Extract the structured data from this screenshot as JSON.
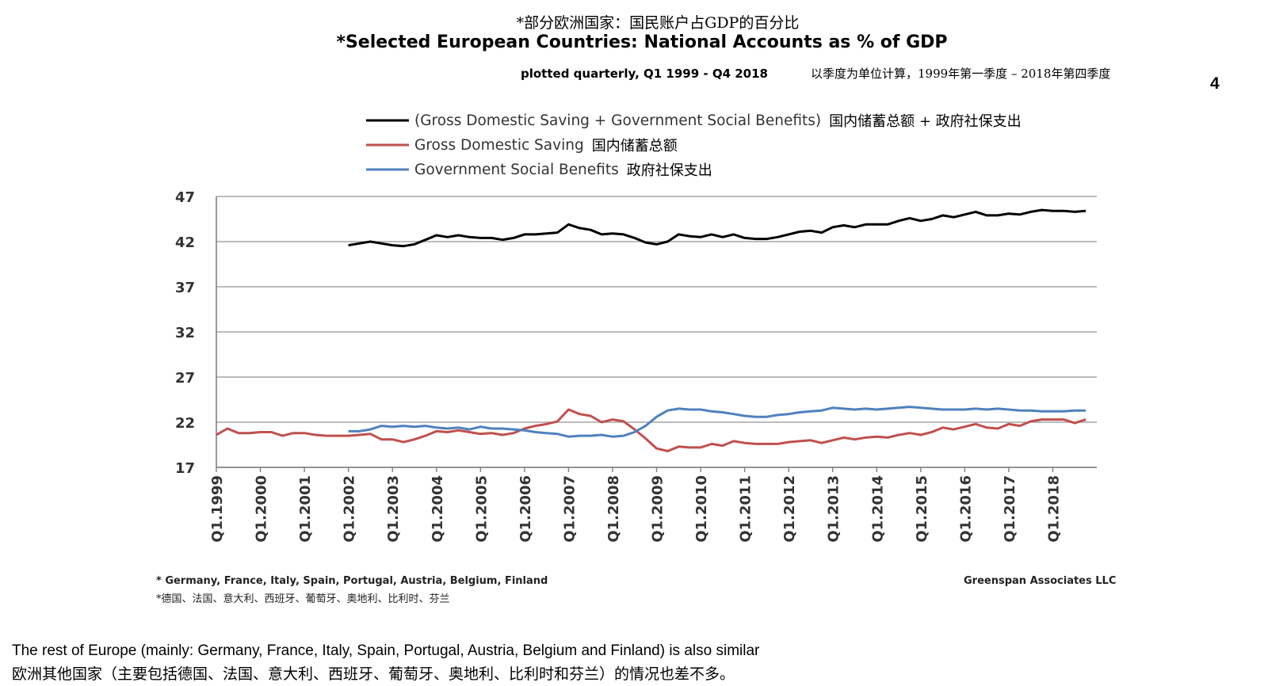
{
  "page": {
    "title_cn": "*部分欧洲国家：国民账户占GDP的百分比",
    "title_en": "*Selected European Countries: National Accounts as % of GDP",
    "subtitle_en": "plotted quarterly, Q1 1999 - Q4 2018",
    "subtitle_cn": "以季度为单位计算，1999年第一季度 – 2018年第四季度",
    "page_number": "4",
    "footnote_en": "* Germany, France, Italy, Spain, Portugal, Austria, Belgium, Finland",
    "footnote_cn": "*德国、法国、意大利、西班牙、葡萄牙、奥地利、比利时、芬兰",
    "source": "Greenspan Associates LLC",
    "caption_en": "The rest of Europe (mainly: Germany, France, Italy, Spain, Portugal, Austria, Belgium and Finland) is also similar",
    "caption_cn": "欧洲其他国家（主要包括德国、法国、意大利、西班牙、葡萄牙、奥地利、比利时和芬兰）的情况也差不多。"
  },
  "chart_data": {
    "type": "line",
    "title": "*Selected European Countries: National Accounts as % of GDP",
    "subtitle": "plotted quarterly, Q1 1999 - Q4 2018",
    "xlabel": "",
    "ylabel": "",
    "ylim": [
      17,
      47
    ],
    "yticks": [
      17,
      22,
      27,
      32,
      37,
      42,
      47
    ],
    "xticks": [
      "Q1.1999",
      "Q1.2000",
      "Q1.2001",
      "Q1.2002",
      "Q1.2003",
      "Q1.2004",
      "Q1.2005",
      "Q1.2006",
      "Q1.2007",
      "Q1.2008",
      "Q1.2009",
      "Q1.2010",
      "Q1.2011",
      "Q1.2012",
      "Q1.2013",
      "Q1.2014",
      "Q1.2015",
      "Q1.2016",
      "Q1.2017",
      "Q1.2018"
    ],
    "x_start_year": 1999,
    "quarters": 80,
    "grid": true,
    "legend_position": "top",
    "series": [
      {
        "name": "(Gross Domestic Saving + Government Social Benefits)",
        "name_cn": "国内储蓄总额 + 政府社保支出",
        "color": "#000000",
        "start_index": 12,
        "values": [
          41.6,
          41.8,
          42.0,
          41.8,
          41.6,
          41.5,
          41.7,
          42.2,
          42.7,
          42.5,
          42.7,
          42.5,
          42.4,
          42.4,
          42.2,
          42.4,
          42.8,
          42.8,
          42.9,
          43.0,
          43.9,
          43.5,
          43.3,
          42.8,
          42.9,
          42.8,
          42.4,
          41.9,
          41.7,
          42.0,
          42.8,
          42.6,
          42.5,
          42.8,
          42.5,
          42.8,
          42.4,
          42.3,
          42.3,
          42.5,
          42.8,
          43.1,
          43.2,
          43.0,
          43.6,
          43.8,
          43.6,
          43.9,
          43.9,
          43.9,
          44.3,
          44.6,
          44.3,
          44.5,
          44.9,
          44.7,
          45.0,
          45.3,
          44.9,
          44.9,
          45.1,
          45.0,
          45.3,
          45.5,
          45.4,
          45.4,
          45.3,
          45.4
        ]
      },
      {
        "name": "Gross Domestic Saving",
        "name_cn": "国内储蓄总额",
        "color": "#c0504d",
        "start_index": 0,
        "values": [
          20.6,
          21.3,
          20.8,
          20.8,
          20.9,
          20.9,
          20.5,
          20.8,
          20.8,
          20.6,
          20.5,
          20.5,
          20.5,
          20.6,
          20.7,
          20.1,
          20.1,
          19.8,
          20.1,
          20.5,
          21.0,
          20.9,
          21.1,
          20.9,
          20.7,
          20.8,
          20.6,
          20.8,
          21.3,
          21.6,
          21.8,
          22.1,
          23.4,
          22.9,
          22.7,
          22.0,
          22.3,
          22.1,
          21.2,
          20.2,
          19.1,
          18.8,
          19.3,
          19.2,
          19.2,
          19.6,
          19.4,
          19.9,
          19.7,
          19.6,
          19.6,
          19.6,
          19.8,
          19.9,
          20.0,
          19.7,
          20.0,
          20.3,
          20.1,
          20.3,
          20.4,
          20.3,
          20.6,
          20.8,
          20.6,
          20.9,
          21.4,
          21.2,
          21.5,
          21.8,
          21.4,
          21.3,
          21.8,
          21.6,
          22.1,
          22.3,
          22.3,
          22.3,
          21.9,
          22.3
        ]
      },
      {
        "name": "Government Social Benefits",
        "name_cn": "政府社保支出",
        "color": "#4f81bd",
        "start_index": 12,
        "values": [
          21.0,
          21.0,
          21.2,
          21.6,
          21.5,
          21.6,
          21.5,
          21.6,
          21.4,
          21.3,
          21.4,
          21.2,
          21.5,
          21.3,
          21.3,
          21.2,
          21.1,
          20.9,
          20.8,
          20.7,
          20.4,
          20.5,
          20.5,
          20.6,
          20.4,
          20.5,
          20.9,
          21.6,
          22.6,
          23.3,
          23.5,
          23.4,
          23.4,
          23.2,
          23.1,
          22.9,
          22.7,
          22.6,
          22.6,
          22.8,
          22.9,
          23.1,
          23.2,
          23.3,
          23.6,
          23.5,
          23.4,
          23.5,
          23.4,
          23.5,
          23.6,
          23.7,
          23.6,
          23.5,
          23.4,
          23.4,
          23.4,
          23.5,
          23.4,
          23.5,
          23.4,
          23.3,
          23.3,
          23.2,
          23.2,
          23.2,
          23.3,
          23.3
        ]
      }
    ]
  }
}
